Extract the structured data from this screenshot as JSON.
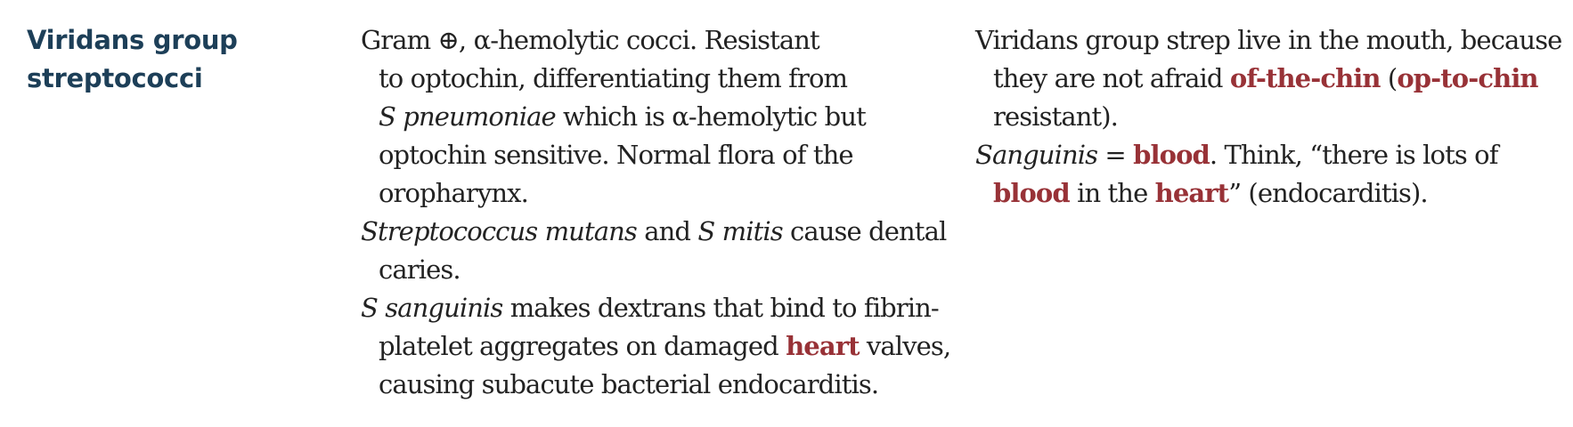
{
  "term": {
    "line1": "Viridans group",
    "line2": "streptococci"
  },
  "description": {
    "p1": {
      "l1": "Gram ⊕, α-hemolytic cocci. Resistant",
      "l2": "to optochin, differentiating them from",
      "l3_italic": "S pneumoniae",
      "l3_rest": " which is α-hemolytic but",
      "l4": "optochin sensitive. Normal flora of the",
      "l5": "oropharynx."
    },
    "p2": {
      "l1_italic_a": "Streptococcus mutans",
      "l1_text_a": " and ",
      "l1_italic_b": "S mitis",
      "l1_text_b": " cause dental",
      "l2": "caries."
    },
    "p3": {
      "l1_italic": "S sanguinis",
      "l1_rest": " makes dextrans that bind to fibrin-",
      "l2_pre": "platelet aggregates on damaged ",
      "l2_hl": "heart",
      "l2_post": " valves,",
      "l3": "causing subacute bacterial endocarditis."
    }
  },
  "mnemonic": {
    "p1": {
      "l1": "Viridans group strep live in the mouth, because",
      "l2_pre": "they are not afraid ",
      "l2_hl1": "of-the-chin",
      "l2_mid": " (",
      "l2_hl2": "op-to-chin",
      "l3": "resistant)."
    },
    "p2": {
      "l1_italic": "Sanguinis",
      "l1_eq": " = ",
      "l1_hl": "blood",
      "l1_rest": ". Think, “there is lots of",
      "l2_hl1": "blood",
      "l2_mid": " in the ",
      "l2_hl2": "heart",
      "l2_post": "” (endocarditis)."
    }
  },
  "colors": {
    "term": "#1d3f58",
    "highlight": "#983237",
    "body_text": "#222222"
  }
}
